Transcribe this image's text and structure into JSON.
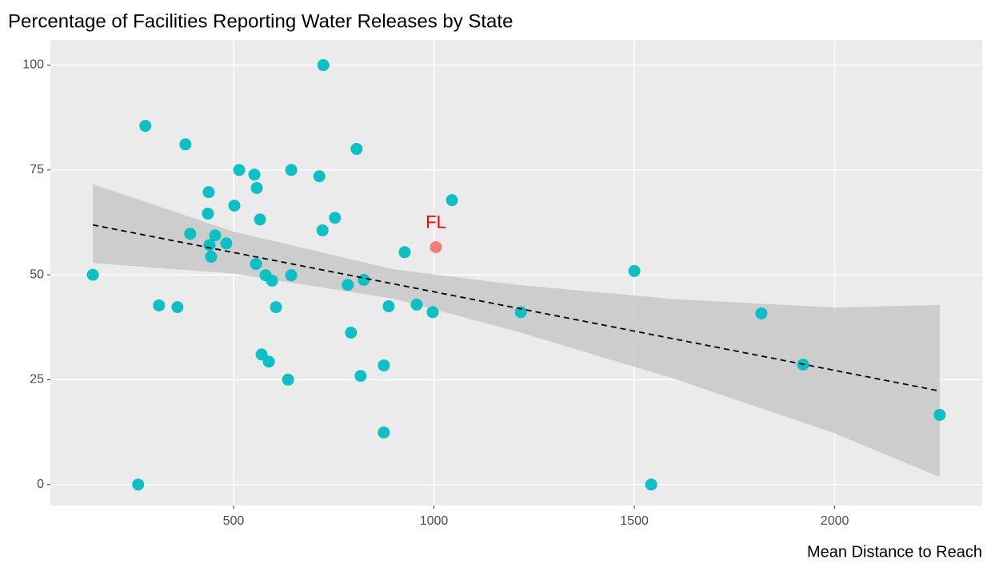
{
  "chart_data": {
    "type": "scatter",
    "title": "Percentage of Facilities Reporting Water Releases by State",
    "x_label": "Mean Distance to Reach",
    "xlim": [
      43,
      2368
    ],
    "ylim": [
      -5,
      106
    ],
    "xticks": [
      500,
      1000,
      1500,
      2000
    ],
    "yticks": [
      0,
      25,
      50,
      75,
      100
    ],
    "grid": true,
    "series": [
      {
        "color": "#00BFC4",
        "x": [
          149,
          262,
          280,
          314,
          360,
          380,
          392,
          436,
          438,
          440,
          444,
          454,
          482,
          502,
          514,
          552,
          558,
          556,
          566,
          570,
          580,
          588,
          596,
          606,
          636,
          644,
          644,
          714,
          722,
          724,
          753,
          785,
          793,
          807,
          817,
          825,
          875,
          875,
          887,
          927,
          957,
          997,
          1045,
          1217,
          1500,
          1542,
          1817,
          1921,
          2262
        ],
        "values": [
          50,
          0,
          85.5,
          42.7,
          42.3,
          81.1,
          59.8,
          64.6,
          69.7,
          57.1,
          54.3,
          59.4,
          57.5,
          66.5,
          75,
          73.9,
          70.7,
          52.6,
          63.2,
          31,
          49.9,
          29.3,
          48.6,
          42.3,
          25,
          75,
          49.9,
          73.5,
          60.6,
          100,
          63.6,
          47.6,
          36.2,
          80,
          25.9,
          48.8,
          28.4,
          12.4,
          42.5,
          55.4,
          42.9,
          41.1,
          67.8,
          41.1,
          50.9,
          0,
          40.8,
          28.6,
          16.6
        ]
      },
      {
        "color": "#F8766D",
        "x": [
          1005
        ],
        "values": [
          56.6
        ]
      }
    ],
    "annotation": {
      "text": "FL",
      "x": 1005,
      "y": 56.6,
      "color": "#FF0000"
    },
    "trend": {
      "color": "#000000",
      "x": [
        149,
        2262
      ],
      "values": [
        61.9,
        22.3
      ]
    },
    "band": {
      "color": "#C8C8C8",
      "x": [
        149,
        500,
        900,
        1200,
        1600,
        2000,
        2262
      ],
      "lower": [
        52.8,
        50.3,
        44.3,
        36.7,
        25.2,
        12.2,
        1.8
      ],
      "upper": [
        71.6,
        60.3,
        51.3,
        47.7,
        44.2,
        42.2,
        42.8
      ]
    }
  }
}
